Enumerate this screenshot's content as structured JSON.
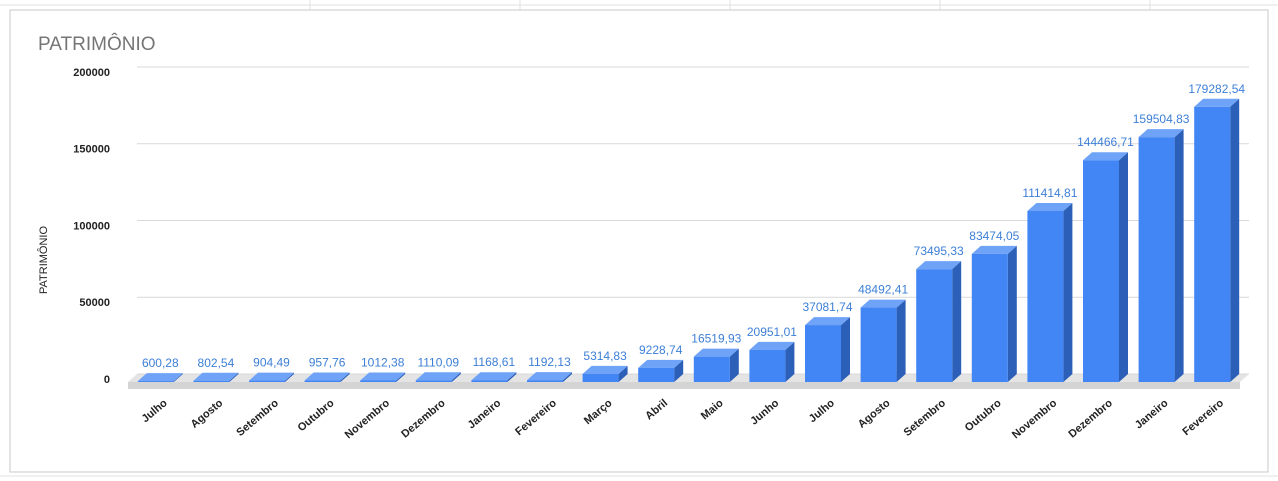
{
  "chart_data": {
    "type": "bar3d",
    "title": "PATRIMÔNIO",
    "y_label": "PATRIMÔNIO",
    "categories": [
      "Julho",
      "Agosto",
      "Setembro",
      "Outubro",
      "Novembro",
      "Dezembro",
      "Janeiro",
      "Fevereiro",
      "Março",
      "Abril",
      "Maio",
      "Junho",
      "Julho",
      "Agosto",
      "Setembro",
      "Outubro",
      "Novembro",
      "Dezembro",
      "Janeiro",
      "Fevereiro"
    ],
    "values": [
      600.28,
      802.54,
      904.49,
      957.76,
      1012.38,
      1110.09,
      1168.61,
      1192.13,
      5314.83,
      9228.74,
      16519.93,
      20951.01,
      37081.74,
      48492.41,
      73495.33,
      83474.05,
      111414.81,
      144466.71,
      159504.83,
      179282.54
    ],
    "value_labels": [
      "600,28",
      "802,54",
      "904,49",
      "957,76",
      "1012,38",
      "1110,09",
      "1168,61",
      "1192,13",
      "5314,83",
      "9228,74",
      "16519,93",
      "20951,01",
      "37081,74",
      "48492,41",
      "73495,33",
      "83474,05",
      "111414,81",
      "144466,71",
      "159504,83",
      "179282,54"
    ],
    "color": "#4285f4",
    "ylim": [
      0,
      200000
    ],
    "yticks": [
      0,
      50000,
      100000,
      150000,
      200000
    ],
    "grid": true
  }
}
